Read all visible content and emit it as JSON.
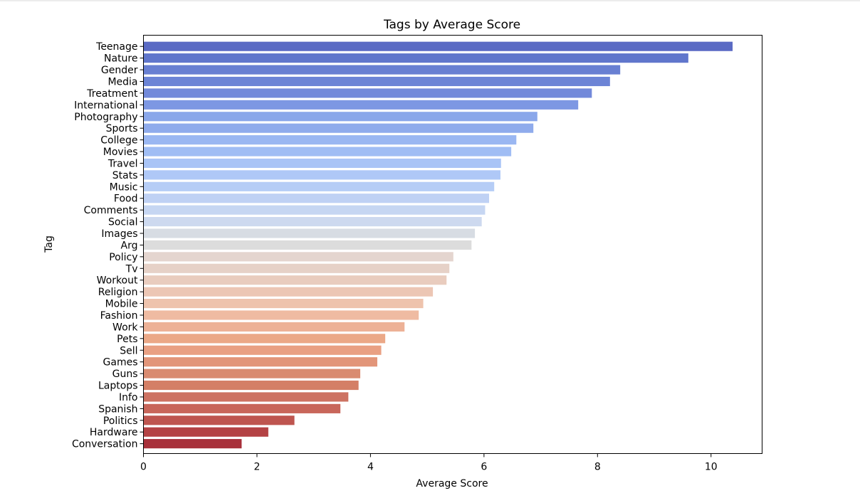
{
  "chart_data": {
    "type": "bar",
    "orientation": "horizontal",
    "title": "Tags by Average Score",
    "xlabel": "Average Score",
    "ylabel": "Tag",
    "xlim": [
      0,
      10.9
    ],
    "xticks": [
      0,
      2,
      4,
      6,
      8,
      10
    ],
    "grid": false,
    "categories": [
      "Teenage",
      "Nature",
      "Gender",
      "Media",
      "Treatment",
      "International",
      "Photography",
      "Sports",
      "College",
      "Movies",
      "Travel",
      "Stats",
      "Music",
      "Food",
      "Comments",
      "Social",
      "Images",
      "Arg",
      "Policy",
      "Tv",
      "Workout",
      "Religion",
      "Mobile",
      "Fashion",
      "Work",
      "Pets",
      "Sell",
      "Games",
      "Guns",
      "Laptops",
      "Info",
      "Spanish",
      "Politics",
      "Hardware",
      "Conversation"
    ],
    "values": [
      10.38,
      9.6,
      8.4,
      8.22,
      7.9,
      7.66,
      6.94,
      6.87,
      6.57,
      6.48,
      6.3,
      6.29,
      6.18,
      6.09,
      6.02,
      5.96,
      5.84,
      5.78,
      5.46,
      5.39,
      5.34,
      5.1,
      4.93,
      4.85,
      4.6,
      4.26,
      4.19,
      4.12,
      3.82,
      3.79,
      3.61,
      3.47,
      2.66,
      2.2,
      1.73
    ],
    "colors": [
      "#5a6ac4",
      "#6076cc",
      "#687fd2",
      "#6c84d6",
      "#7289da",
      "#7d97e3",
      "#8aa7ea",
      "#8fabec",
      "#9ab7f2",
      "#a0bdf4",
      "#a9c4f6",
      "#afc8f7",
      "#b6cdf6",
      "#bfd1f4",
      "#c6d6f2",
      "#cdd9ef",
      "#d7dce3",
      "#dcdcdc",
      "#e4d5cf",
      "#e6d1c7",
      "#e9ccbe",
      "#ecc6b4",
      "#eec3ad",
      "#efbba2",
      "#edb196",
      "#eba887",
      "#e9a083",
      "#e29579",
      "#d98b70",
      "#d47f66",
      "#cd7262",
      "#c8665a",
      "#be554f",
      "#b44244",
      "#a8303a"
    ]
  }
}
